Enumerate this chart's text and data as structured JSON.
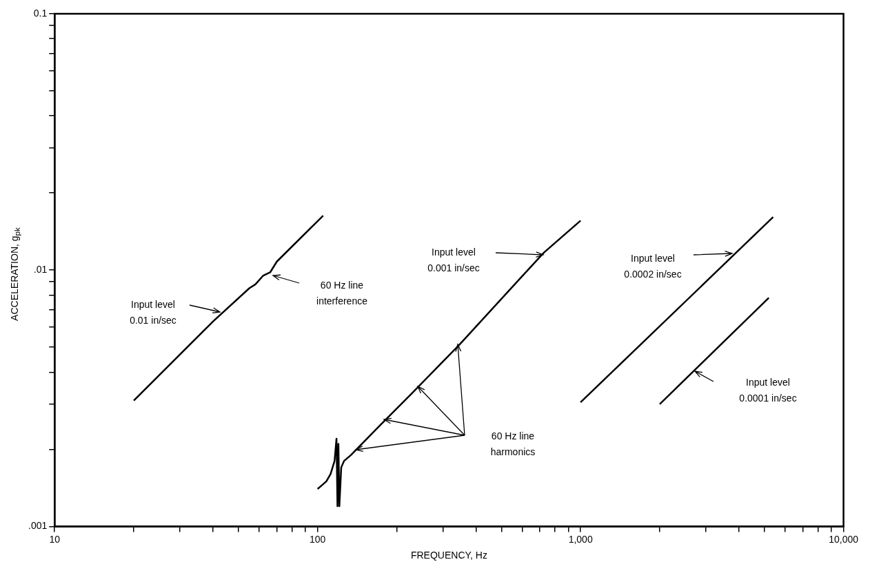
{
  "chart_data": {
    "type": "line",
    "xlabel": "FREQUENCY, Hz",
    "ylabel": "ACCELERATION, g$_{pk}$",
    "log": "xy",
    "grid": false,
    "legend": false,
    "marker": "none",
    "line_style": "solid",
    "xlim": [
      10,
      10000
    ],
    "ylim": [
      0.001,
      0.1
    ],
    "xticks": [
      10,
      {
        "value": 20,
        "label": null
      },
      {
        "value": 30,
        "label": null
      },
      {
        "value": 40,
        "label": null
      },
      {
        "value": 50,
        "label": null
      },
      {
        "value": 60,
        "label": null
      },
      {
        "value": 70,
        "label": null
      },
      {
        "value": 80,
        "label": null
      },
      {
        "value": 90,
        "label": null
      },
      100,
      {
        "value": 200,
        "label": null
      },
      {
        "value": 300,
        "label": null
      },
      {
        "value": 400,
        "label": null
      },
      {
        "value": 500,
        "label": null
      },
      {
        "value": 600,
        "label": null
      },
      {
        "value": 700,
        "label": null
      },
      {
        "value": 800,
        "label": null
      },
      {
        "value": 900,
        "label": null
      },
      {
        "value": 1000,
        "label": "1,000"
      },
      {
        "value": 2000,
        "label": null
      },
      {
        "value": 3000,
        "label": null
      },
      {
        "value": 4000,
        "label": null
      },
      {
        "value": 5000,
        "label": null
      },
      {
        "value": 6000,
        "label": null
      },
      {
        "value": 7000,
        "label": null
      },
      {
        "value": 8000,
        "label": null
      },
      {
        "value": 9000,
        "label": null
      },
      {
        "value": 10000,
        "label": "10,000"
      }
    ],
    "yticks": [
      {
        "value": 0.001,
        "label": ".001"
      },
      {
        "value": 0.002,
        "label": null
      },
      {
        "value": 0.003,
        "label": null
      },
      {
        "value": 0.004,
        "label": null
      },
      {
        "value": 0.005,
        "label": null
      },
      {
        "value": 0.006,
        "label": null
      },
      {
        "value": 0.007,
        "label": null
      },
      {
        "value": 0.008,
        "label": null
      },
      {
        "value": 0.009,
        "label": null
      },
      {
        "value": 0.01,
        "label": ".01"
      },
      {
        "value": 0.02,
        "label": null
      },
      {
        "value": 0.03,
        "label": null
      },
      {
        "value": 0.04,
        "label": null
      },
      {
        "value": 0.05,
        "label": null
      },
      {
        "value": 0.06,
        "label": null
      },
      {
        "value": 0.07,
        "label": null
      },
      {
        "value": 0.08,
        "label": null
      },
      {
        "value": 0.09,
        "label": null
      },
      {
        "value": 0.1,
        "label": "0.1"
      }
    ],
    "series": [
      {
        "color": "#000000",
        "x": [
          20,
          40,
          55,
          58,
          62,
          66,
          70,
          105
        ],
        "values": [
          0.0031,
          0.0063,
          0.0085,
          0.0088,
          0.0095,
          0.0098,
          0.0108,
          0.0163
        ]
      },
      {
        "color": "#000000",
        "x": [
          100,
          104,
          108,
          112,
          116,
          118,
          119,
          120,
          121,
          123,
          126,
          134,
          174,
          228,
          345,
          725,
          1000
        ],
        "values": [
          0.0014,
          0.00145,
          0.0015,
          0.0016,
          0.0018,
          0.0022,
          0.0012,
          0.0021,
          0.0012,
          0.0017,
          0.0018,
          0.0019,
          0.0025,
          0.0033,
          0.0051,
          0.0117,
          0.0156
        ]
      },
      {
        "color": "#000000",
        "x": [
          1000,
          5400
        ],
        "values": [
          0.00305,
          0.0161
        ]
      },
      {
        "color": "#000000",
        "x": [
          2000,
          5200
        ],
        "values": [
          0.003,
          0.0078
        ]
      }
    ],
    "annotations": [
      "Input level\n0.01 in/sec",
      "60 Hz line\ninterference",
      "Input level\n0.001 in/sec",
      "60 Hz line\nharmonics",
      "Input level\n0.0002 in/sec",
      "Input level\n0.0001 in/sec"
    ]
  }
}
